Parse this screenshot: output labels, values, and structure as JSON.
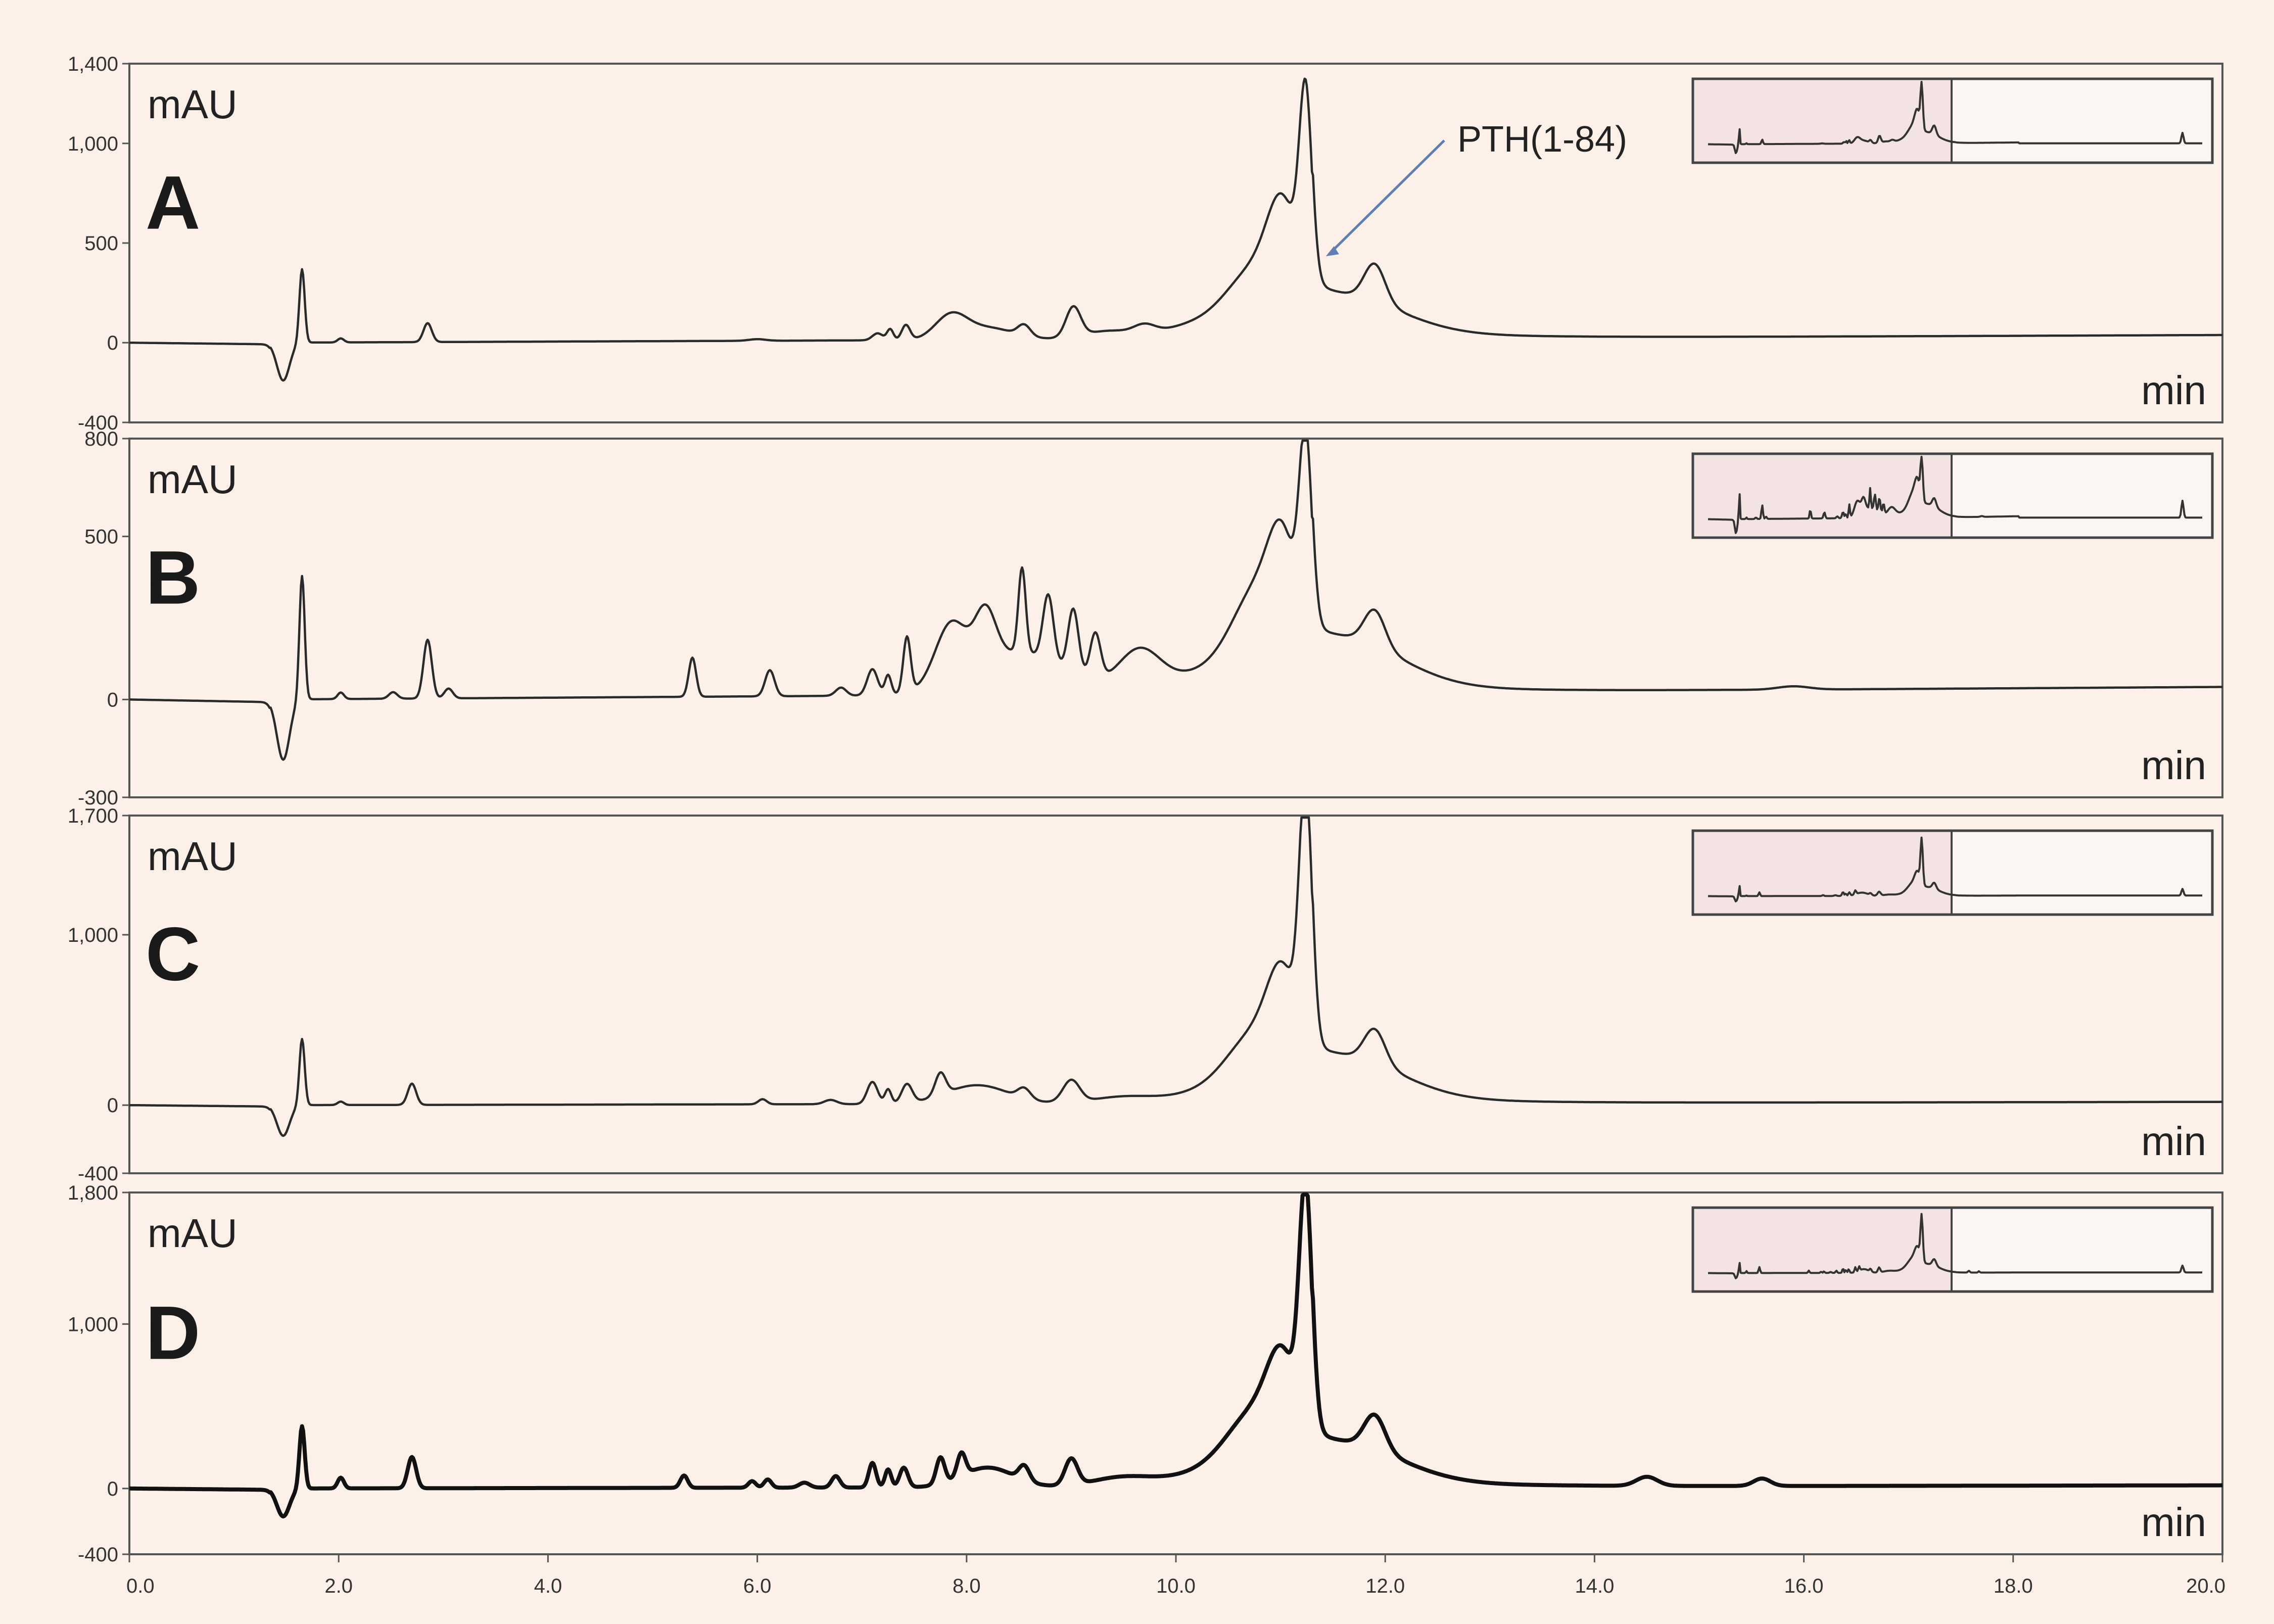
{
  "chart_data": {
    "type": "line",
    "x_axis": {
      "range": [
        0,
        20
      ],
      "ticks": [
        0,
        2,
        4,
        6,
        8,
        10,
        12,
        14,
        16,
        18,
        20
      ],
      "tick_labels": [
        "0.0",
        "2.0",
        "4.0",
        "6.0",
        "8.0",
        "10.0",
        "12.0",
        "14.0",
        "16.0",
        "18.0",
        "20.0"
      ],
      "label": "min"
    },
    "y_label": "mAU",
    "panels": [
      {
        "letter": "A",
        "ylim": [
          -400,
          1400
        ],
        "yticks": [
          {
            "v": 1400,
            "label": "1,400"
          },
          {
            "v": 1000,
            "label": "1,000"
          },
          {
            "v": 500,
            "label": "500"
          },
          {
            "v": 0,
            "label": "0"
          },
          {
            "v": -400,
            "label": "-400"
          }
        ],
        "baseline_start": 0,
        "baseline_end": 40,
        "peaks": [
          [
            1.47,
            -190,
            0.06
          ],
          [
            1.65,
            370,
            0.025
          ],
          [
            2.02,
            20,
            0.03
          ],
          [
            2.85,
            95,
            0.04
          ],
          [
            6.0,
            8,
            0.08
          ],
          [
            7.15,
            35,
            0.05
          ],
          [
            7.27,
            55,
            0.03
          ],
          [
            7.42,
            75,
            0.04
          ],
          [
            7.85,
            115,
            0.15
          ],
          [
            8.2,
            60,
            0.25
          ],
          [
            8.55,
            55,
            0.06
          ],
          [
            9.02,
            150,
            0.07
          ],
          [
            9.35,
            40,
            0.25
          ],
          [
            9.7,
            40,
            0.1
          ],
          [
            10.2,
            65,
            0.35
          ],
          [
            10.78,
            300,
            0.28
          ],
          [
            11.02,
            420,
            0.14
          ],
          [
            11.24,
            970,
            0.06
          ],
          [
            11.6,
            160,
            0.55
          ],
          [
            11.9,
            190,
            0.1
          ]
        ],
        "annotation": {
          "text": "PTH(1-84)",
          "x": 11.24
        },
        "inset": {
          "style": "normal"
        }
      },
      {
        "letter": "B",
        "ylim": [
          -300,
          800
        ],
        "yticks": [
          {
            "v": 800,
            "label": "800"
          },
          {
            "v": 500,
            "label": "500"
          },
          {
            "v": 0,
            "label": "0"
          },
          {
            "v": -300,
            "label": "-300"
          }
        ],
        "baseline_start": 0,
        "baseline_end": 40,
        "peaks": [
          [
            1.47,
            -185,
            0.06
          ],
          [
            1.65,
            380,
            0.025
          ],
          [
            2.02,
            20,
            0.03
          ],
          [
            2.52,
            20,
            0.04
          ],
          [
            2.85,
            180,
            0.04
          ],
          [
            3.05,
            30,
            0.04
          ],
          [
            5.38,
            120,
            0.035
          ],
          [
            6.12,
            80,
            0.045
          ],
          [
            6.8,
            25,
            0.05
          ],
          [
            7.1,
            80,
            0.05
          ],
          [
            7.25,
            60,
            0.03
          ],
          [
            7.43,
            170,
            0.035
          ],
          [
            7.85,
            180,
            0.15
          ],
          [
            8.18,
            160,
            0.1
          ],
          [
            8.5,
            130,
            0.45
          ],
          [
            8.53,
            260,
            0.035
          ],
          [
            8.78,
            200,
            0.05
          ],
          [
            9.02,
            195,
            0.05
          ],
          [
            9.23,
            140,
            0.05
          ],
          [
            9.65,
            120,
            0.2
          ],
          [
            10.3,
            60,
            0.4
          ],
          [
            10.8,
            260,
            0.25
          ],
          [
            11.02,
            260,
            0.13
          ],
          [
            11.24,
            600,
            0.06
          ],
          [
            11.6,
            130,
            0.55
          ],
          [
            11.9,
            110,
            0.1
          ],
          [
            15.9,
            10,
            0.15
          ]
        ],
        "annotation": null,
        "inset": {
          "style": "busy"
        }
      },
      {
        "letter": "C",
        "ylim": [
          -400,
          1700
        ],
        "yticks": [
          {
            "v": 1700,
            "label": "1,700"
          },
          {
            "v": 1000,
            "label": "1,000"
          },
          {
            "v": 0,
            "label": "0"
          },
          {
            "v": -400,
            "label": "-400"
          }
        ],
        "baseline_start": 0,
        "baseline_end": 20,
        "peaks": [
          [
            1.47,
            -180,
            0.06
          ],
          [
            1.65,
            390,
            0.025
          ],
          [
            2.02,
            20,
            0.03
          ],
          [
            2.7,
            125,
            0.04
          ],
          [
            6.05,
            30,
            0.04
          ],
          [
            6.7,
            25,
            0.06
          ],
          [
            7.1,
            130,
            0.05
          ],
          [
            7.25,
            85,
            0.03
          ],
          [
            7.43,
            110,
            0.05
          ],
          [
            7.75,
            130,
            0.05
          ],
          [
            8.1,
            110,
            0.3
          ],
          [
            8.55,
            60,
            0.06
          ],
          [
            9.0,
            130,
            0.08
          ],
          [
            9.5,
            40,
            0.3
          ],
          [
            10.3,
            55,
            0.35
          ],
          [
            10.78,
            340,
            0.28
          ],
          [
            11.02,
            460,
            0.14
          ],
          [
            11.24,
            1530,
            0.06
          ],
          [
            11.6,
            220,
            0.55
          ],
          [
            11.9,
            200,
            0.1
          ]
        ],
        "annotation": null,
        "inset": {
          "style": "normal"
        }
      },
      {
        "letter": "D",
        "ylim": [
          -400,
          1800
        ],
        "yticks": [
          {
            "v": 1800,
            "label": "1,800"
          },
          {
            "v": 1000,
            "label": "1,000"
          },
          {
            "v": 0,
            "label": "0"
          },
          {
            "v": -400,
            "label": "-400"
          }
        ],
        "baseline_start": 0,
        "baseline_end": 20,
        "peaks": [
          [
            1.47,
            -170,
            0.06
          ],
          [
            1.65,
            380,
            0.025
          ],
          [
            2.02,
            65,
            0.03
          ],
          [
            2.7,
            190,
            0.04
          ],
          [
            5.3,
            75,
            0.035
          ],
          [
            5.95,
            40,
            0.035
          ],
          [
            6.1,
            50,
            0.035
          ],
          [
            6.45,
            30,
            0.05
          ],
          [
            6.75,
            70,
            0.04
          ],
          [
            7.1,
            150,
            0.035
          ],
          [
            7.25,
            110,
            0.03
          ],
          [
            7.4,
            120,
            0.04
          ],
          [
            7.75,
            160,
            0.04
          ],
          [
            7.95,
            140,
            0.04
          ],
          [
            8.2,
            120,
            0.25
          ],
          [
            8.55,
            90,
            0.05
          ],
          [
            9.0,
            160,
            0.06
          ],
          [
            9.5,
            60,
            0.3
          ],
          [
            10.3,
            75,
            0.35
          ],
          [
            10.78,
            380,
            0.28
          ],
          [
            11.02,
            460,
            0.14
          ],
          [
            11.24,
            1480,
            0.06
          ],
          [
            11.6,
            210,
            0.55
          ],
          [
            11.9,
            210,
            0.1
          ],
          [
            14.5,
            55,
            0.1
          ],
          [
            15.6,
            45,
            0.08
          ]
        ],
        "annotation": null,
        "inset": {
          "style": "normal"
        },
        "bold": true
      }
    ]
  }
}
